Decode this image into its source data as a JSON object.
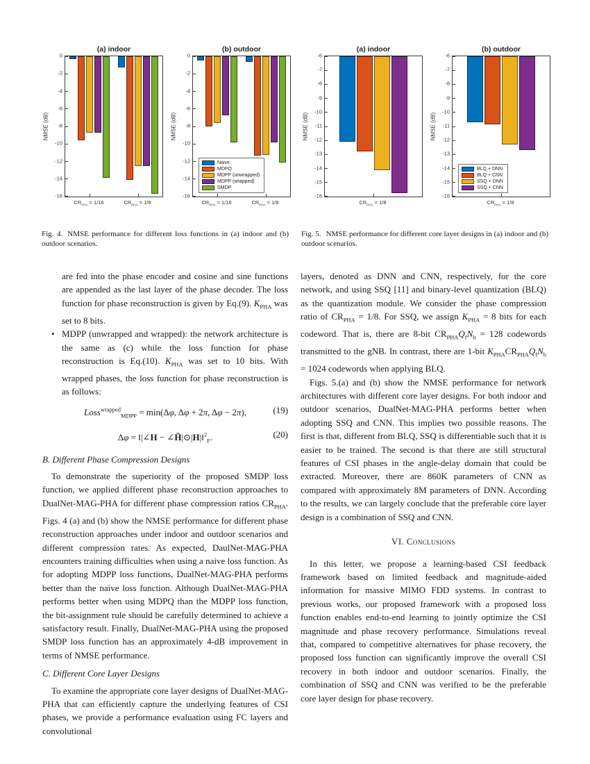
{
  "captions": {
    "fig4": {
      "label": "Fig. 4.",
      "text": "NMSE performance for different loss functions in (a) indoor and (b) outdoor scenarios."
    },
    "fig5": {
      "label": "Fig. 5.",
      "text": "NMSE performance for different core layer designs in (a) indoor and (b) outdoor scenarios."
    }
  },
  "chart_data": [
    {
      "id": "fig4a",
      "type": "bar",
      "title": "(a) indoor",
      "ylabel": "NMSE (dB)",
      "ylim": [
        0,
        -16
      ],
      "ytick_step": 2,
      "bar_origin": 0,
      "grid": false,
      "categories": [
        "CR_{PHA} = 1/16",
        "CR_{PHA} = 1/8"
      ],
      "series": [
        {
          "name": "Naive",
          "color": "#0072BD",
          "values": [
            -0.35,
            -1.25
          ]
        },
        {
          "name": "MDPQ",
          "color": "#D95319",
          "values": [
            -9.6,
            -14.1
          ]
        },
        {
          "name": "MDPP (unwrapped)",
          "color": "#EDB120",
          "values": [
            -8.7,
            -12.5
          ]
        },
        {
          "name": "MDPP (wrapped)",
          "color": "#7E2F8E",
          "values": [
            -8.7,
            -12.5
          ]
        },
        {
          "name": "SMDP",
          "color": "#77AC30",
          "values": [
            -13.9,
            -15.7
          ]
        }
      ],
      "legend": {
        "show": false,
        "position": "lower-left"
      }
    },
    {
      "id": "fig4b",
      "type": "bar",
      "title": "(b) outdoor",
      "ylabel": "NMSE (dB)",
      "ylim": [
        0,
        -16
      ],
      "ytick_step": 2,
      "bar_origin": 0,
      "grid": false,
      "categories": [
        "CR_{PHA} = 1/16",
        "CR_{PHA} = 1/8"
      ],
      "series": [
        {
          "name": "Naive",
          "color": "#0072BD",
          "values": [
            -0.5,
            -0.65
          ]
        },
        {
          "name": "MDPQ",
          "color": "#D95319",
          "values": [
            -8.0,
            -11.3
          ]
        },
        {
          "name": "MDPP (unwrapped)",
          "color": "#EDB120",
          "values": [
            -7.6,
            -11.25
          ]
        },
        {
          "name": "MDPP (wrapped)",
          "color": "#7E2F8E",
          "values": [
            -6.75,
            -9.85
          ]
        },
        {
          "name": "SMDP",
          "color": "#77AC30",
          "values": [
            -9.8,
            -12.1
          ]
        }
      ],
      "legend": {
        "show": true,
        "position": "lower-left"
      }
    },
    {
      "id": "fig5a",
      "type": "bar",
      "title": "(a) indoor",
      "ylabel": "NMSE (dB)",
      "ylim": [
        -6,
        -16
      ],
      "ytick_step": 1,
      "bar_origin": -6,
      "grid": false,
      "categories": [
        "CR_{PHA} = 1/8"
      ],
      "series": [
        {
          "name": "BLQ + DNN",
          "color": "#0072BD",
          "values": [
            -12.1
          ]
        },
        {
          "name": "BLQ + CNN",
          "color": "#D95319",
          "values": [
            -12.8
          ]
        },
        {
          "name": "SSQ + DNN",
          "color": "#EDB120",
          "values": [
            -14.1
          ]
        },
        {
          "name": "SSQ + CNN",
          "color": "#7E2F8E",
          "values": [
            -15.75
          ]
        }
      ],
      "legend": {
        "show": false,
        "position": "lower-left"
      }
    },
    {
      "id": "fig5b",
      "type": "bar",
      "title": "(b) outdoor",
      "ylabel": "NMSE (dB)",
      "ylim": [
        -6,
        -16
      ],
      "ytick_step": 1,
      "bar_origin": -6,
      "grid": false,
      "categories": [
        "CR_{PHA} = 1/8"
      ],
      "series": [
        {
          "name": "BLQ + DNN",
          "color": "#0072BD",
          "values": [
            -10.7
          ]
        },
        {
          "name": "BLQ + CNN",
          "color": "#D95319",
          "values": [
            -10.85
          ]
        },
        {
          "name": "SSQ + DNN",
          "color": "#EDB120",
          "values": [
            -12.3
          ]
        },
        {
          "name": "SSQ + CNN",
          "color": "#7E2F8E",
          "values": [
            -12.7
          ]
        }
      ],
      "legend": {
        "show": true,
        "position": "lower-left"
      }
    }
  ],
  "body": {
    "left": [
      {
        "type": "cont",
        "text": "are fed into the phase encoder and cosine and sine functions are appended as the last layer of the phase decoder. The loss function for phase reconstruction is given by Eq.(9). *K*_{PHA} was set to 8 bits."
      },
      {
        "type": "bullet",
        "marker": "•",
        "text": "MDPP (unwrapped and wrapped): the network architecture is the same as (c) while the loss function for phase reconstruction is Eq.(10). *K*_{PHA} was set to 10 bits. With wrapped phases, the loss function for phase reconstruction is as follows:"
      },
      {
        "type": "equation",
        "text": "*Loss*^{wrapped}_{MDPP} = min(Δ*φ*, Δ*φ* + 2*π*, Δ*φ* − 2*π*),",
        "num": "(19)"
      },
      {
        "type": "equation",
        "text": "Δ*φ* = ‖|∠**H** − ∠**Ĥ**|⊙|**H**|‖^{2}_{F}.",
        "num": "(20)"
      },
      {
        "type": "subheading",
        "text": "B. Different Phase Compression Designs"
      },
      {
        "type": "para",
        "indent": true,
        "text": "To demonstrate the superiority of the proposed SMDP loss function, we applied different phase reconstruction approaches to DualNet-MAG-PHA for different phase compression ratios CR_{PHA}. Figs. 4 (a) and (b) show the NMSE performance for different phase reconstruction approaches under indoor and outdoor scenarios and different compression rates. As expected, DaulNet-MAG-PHA encounters training difficulties when using a naive loss function. As for adopting MDPP loss functions, DualNet-MAG-PHA performs better than the naive loss function. Although DualNet-MAG-PHA performs better when using MDPQ than the MDPP loss function, the bit-assignment rule should be carefully determined to achieve a satisfactory result. Finally, DualNet-MAG-PHA using the proposed SMDP loss function has an approximately 4-dB improvement in terms of NMSE performance."
      },
      {
        "type": "subheading",
        "text": "C. Different Core Layer Designs"
      },
      {
        "type": "para",
        "indent": true,
        "text": "To examine the appropriate core layer designs of DualNet-MAG-PHA that can efficiently capture the underlying features of CSI phases, we provide a performance evaluation using FC layers and convolutional"
      }
    ],
    "right": [
      {
        "type": "para",
        "indent": false,
        "text": "layers, denoted as DNN and CNN, respectively, for the core network, and using SSQ [11] and binary-level quantization (BLQ) as the quantization module. We consider the phase compression ratio of CR_{PHA} = 1/8. For SSQ, we assign *K*_{PHA} = 8 bits for each codeword. That is, there are 8-bit CR_{PHA}*Q*_{f}*N*_{b} = 128 codewords transmitted to the gNB. In contrast, there are 1-bit *K*_{PHA}CR_{PHA}*Q*_{f}*N*_{b} = 1024 codewords when applying BLQ."
      },
      {
        "type": "para",
        "indent": true,
        "text": "Figs. 5.(a) and (b) show the NMSE performance for network architectures with different core layer designs. For both indoor and outdoor scenarios, DualNet-MAG-PHA performs better when adopting SSQ and CNN. This implies two possible reasons. The first is that, different from BLQ, SSQ is differentiable such that it is easier to be trained. The second is that there are still structural features of CSI phases in the angle-delay domain that could be extracted. Moreover, there are 860K parameters of CNN as compared with approximately 8M parameters of DNN. According to the results, we can largely conclude that the preferable core layer design is a combination of SSQ and CNN."
      },
      {
        "type": "heading",
        "text": "VI. Conclusions"
      },
      {
        "type": "para",
        "indent": true,
        "text": "In this letter, we propose a learning-based CSI feedback framework based on limited feedback and magnitude-aided information for massive MIMO FDD systems. In contrast to previous works, our proposed framework with a proposed loss function enables end-to-end learning to jointly optimize the CSI magnitude and phase recovery performance. Simulations reveal that, compared to competitive alternatives for phase recovery, the proposed loss function can significantly improve the overall CSI recovery in both indoor and outdoor scenarios. Finally, the combination of SSQ and CNN was verified to be the preferable core layer design for phase recovery."
      }
    ]
  }
}
